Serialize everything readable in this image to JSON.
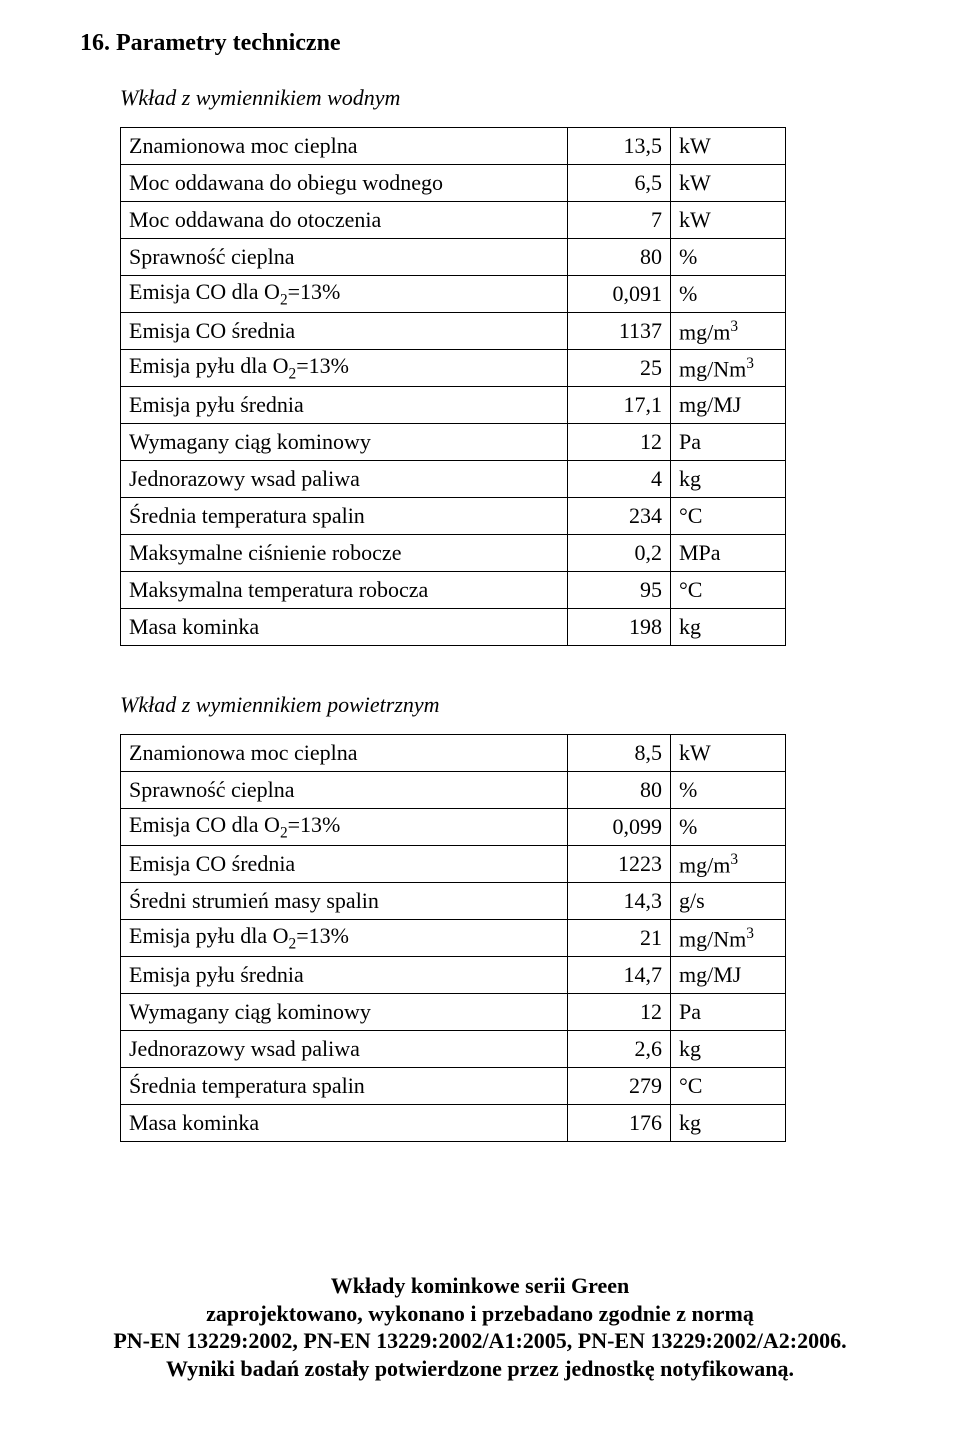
{
  "heading": "16. Parametry techniczne",
  "section1": {
    "title": "Wkład z wymiennikiem wodnym",
    "rows": [
      {
        "label_pre": "Znamionowa moc cieplna",
        "value": "13,5",
        "unit": "kW"
      },
      {
        "label_pre": "Moc oddawana do obiegu wodnego",
        "value": "6,5",
        "unit": "kW"
      },
      {
        "label_pre": "Moc oddawana do otoczenia",
        "value": "7",
        "unit": "kW"
      },
      {
        "label_pre": "Sprawność cieplna",
        "value": "80",
        "unit": "%"
      },
      {
        "label_pre": "Emisja CO dla O",
        "sub": "2",
        "label_post": "=13%",
        "value": "0,091",
        "unit": "%"
      },
      {
        "label_pre": "Emisja CO średnia",
        "value": "1137",
        "unit_pre": "mg/m",
        "unit_sup": "3"
      },
      {
        "label_pre": "Emisja pyłu dla O",
        "sub": "2",
        "label_post": "=13%",
        "value": "25",
        "unit_pre": "mg/Nm",
        "unit_sup": "3"
      },
      {
        "label_pre": "Emisja pyłu średnia",
        "value": "17,1",
        "unit": "mg/MJ"
      },
      {
        "label_pre": "Wymagany ciąg kominowy",
        "value": "12",
        "unit": "Pa"
      },
      {
        "label_pre": "Jednorazowy wsad paliwa",
        "value": "4",
        "unit": "kg"
      },
      {
        "label_pre": "Średnia temperatura spalin",
        "value": "234",
        "unit": "°C"
      },
      {
        "label_pre": "Maksymalne ciśnienie robocze",
        "value": "0,2",
        "unit": "MPa"
      },
      {
        "label_pre": "Maksymalna temperatura robocza",
        "value": "95",
        "unit": "°C"
      },
      {
        "label_pre": "Masa kominka",
        "value": "198",
        "unit": "kg"
      }
    ]
  },
  "section2": {
    "title": "Wkład z wymiennikiem powietrznym",
    "rows": [
      {
        "label_pre": "Znamionowa moc cieplna",
        "value": "8,5",
        "unit": "kW"
      },
      {
        "label_pre": "Sprawność cieplna",
        "value": "80",
        "unit": "%"
      },
      {
        "label_pre": "Emisja CO dla O",
        "sub": "2",
        "label_post": "=13%",
        "value": "0,099",
        "unit": "%"
      },
      {
        "label_pre": "Emisja CO średnia",
        "value": "1223",
        "unit_pre": "mg/m",
        "unit_sup": "3"
      },
      {
        "label_pre": "Średni strumień masy spalin",
        "value": "14,3",
        "unit": "g/s"
      },
      {
        "label_pre": "Emisja pyłu dla O",
        "sub": "2",
        "label_post": "=13%",
        "value": "21",
        "unit_pre": "mg/Nm",
        "unit_sup": "3"
      },
      {
        "label_pre": "Emisja pyłu średnia",
        "value": "14,7",
        "unit": "mg/MJ"
      },
      {
        "label_pre": "Wymagany ciąg kominowy",
        "value": "12",
        "unit": "Pa"
      },
      {
        "label_pre": "Jednorazowy wsad paliwa",
        "value": "2,6",
        "unit": "kg"
      },
      {
        "label_pre": "Średnia temperatura spalin",
        "value": "279",
        "unit": "°C"
      },
      {
        "label_pre": "Masa kominka",
        "value": "176",
        "unit": "kg"
      }
    ]
  },
  "footer": {
    "line1": "Wkłady kominkowe serii Green",
    "line2": "zaprojektowano, wykonano i przebadano zgodnie z normą",
    "line3": "PN-EN 13229:2002, PN-EN 13229:2002/A1:2005, PN-EN 13229:2002/A2:2006.",
    "line4": "Wyniki badań zostały potwierdzone przez jednostkę notyfikowaną."
  }
}
